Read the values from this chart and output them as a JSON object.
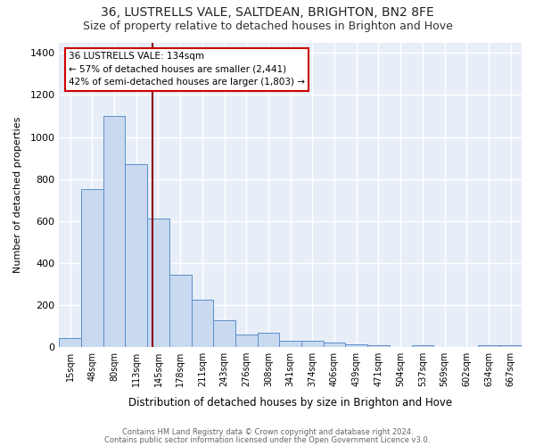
{
  "title1": "36, LUSTRELLS VALE, SALTDEAN, BRIGHTON, BN2 8FE",
  "title2": "Size of property relative to detached houses in Brighton and Hove",
  "xlabel": "Distribution of detached houses by size in Brighton and Hove",
  "ylabel": "Number of detached properties",
  "categories": [
    "15sqm",
    "48sqm",
    "80sqm",
    "113sqm",
    "145sqm",
    "178sqm",
    "211sqm",
    "243sqm",
    "276sqm",
    "308sqm",
    "341sqm",
    "374sqm",
    "406sqm",
    "439sqm",
    "471sqm",
    "504sqm",
    "537sqm",
    "569sqm",
    "602sqm",
    "634sqm",
    "667sqm"
  ],
  "values": [
    45,
    750,
    1100,
    870,
    610,
    345,
    225,
    130,
    60,
    68,
    32,
    30,
    22,
    14,
    10,
    0,
    10,
    0,
    0,
    10,
    10
  ],
  "bar_color": "#c9d9f0",
  "bar_edge_color": "#5b8fc9",
  "vline_color": "#8b0000",
  "annotation_title": "36 LUSTRELLS VALE: 134sqm",
  "annotation_line1": "← 57% of detached houses are smaller (2,441)",
  "annotation_line2": "42% of semi-detached houses are larger (1,803) →",
  "annotation_box_facecolor": "#ffffff",
  "annotation_border_color": "#cc0000",
  "ylim": [
    0,
    1450
  ],
  "yticks": [
    0,
    200,
    400,
    600,
    800,
    1000,
    1200,
    1400
  ],
  "footer1": "Contains HM Land Registry data © Crown copyright and database right 2024.",
  "footer2": "Contains public sector information licensed under the Open Government Licence v3.0.",
  "fig_bg_color": "#ffffff",
  "plot_bg_color": "#e8eef8",
  "grid_color": "#ffffff",
  "title1_fontsize": 10,
  "title2_fontsize": 9,
  "vline_x": 3.75
}
